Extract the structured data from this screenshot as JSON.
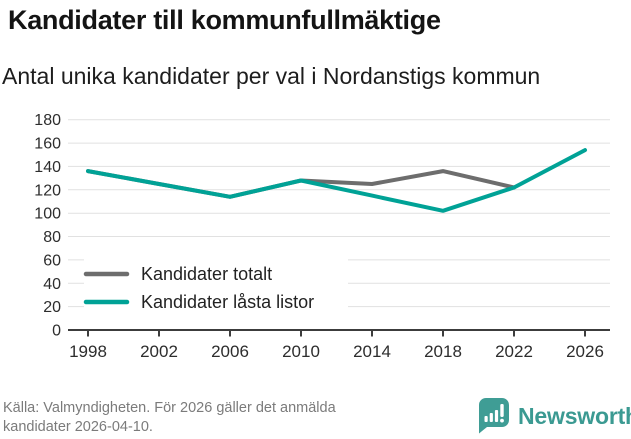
{
  "title": "Kandidater till kommunfullmäktige",
  "subtitle": "Antal unika kandidater per val i Nordanstigs kommun",
  "source": {
    "line1": "Källa: Valmyndigheten. För 2026 gäller det anmälda",
    "line2": "kandidater 2026-04-10."
  },
  "brand": {
    "name": "Newsworthy",
    "color": "#3f9d95"
  },
  "colors": {
    "background": "#ffffff",
    "title_text": "#141414",
    "grid": "#e1e1e1",
    "axis": "#3c3c3c",
    "tick_label": "#2d2d2d",
    "legend_text": "#222222",
    "source_text": "#7b7b7b",
    "series_total": "#6d6d6d",
    "series_locked": "#00a296"
  },
  "chart_data": {
    "type": "line",
    "categories": [
      "1998",
      "2002",
      "2006",
      "2010",
      "2014",
      "2018",
      "2022",
      "2026"
    ],
    "series": [
      {
        "name": "Kandidater totalt",
        "color": "#6d6d6d",
        "values": [
          136,
          125,
          114,
          128,
          125,
          136,
          122,
          null
        ]
      },
      {
        "name": "Kandidater låsta listor",
        "color": "#00a296",
        "values": [
          136,
          125,
          114,
          128,
          115,
          102,
          122,
          154
        ]
      }
    ],
    "ylim": [
      0,
      180
    ],
    "ytick_step": 20,
    "grid": true,
    "legend_position": "lower-left",
    "note": "Gray series (Kandidater totalt) has no 2026 value; lines coincide 1998-2010 and at 2022"
  }
}
